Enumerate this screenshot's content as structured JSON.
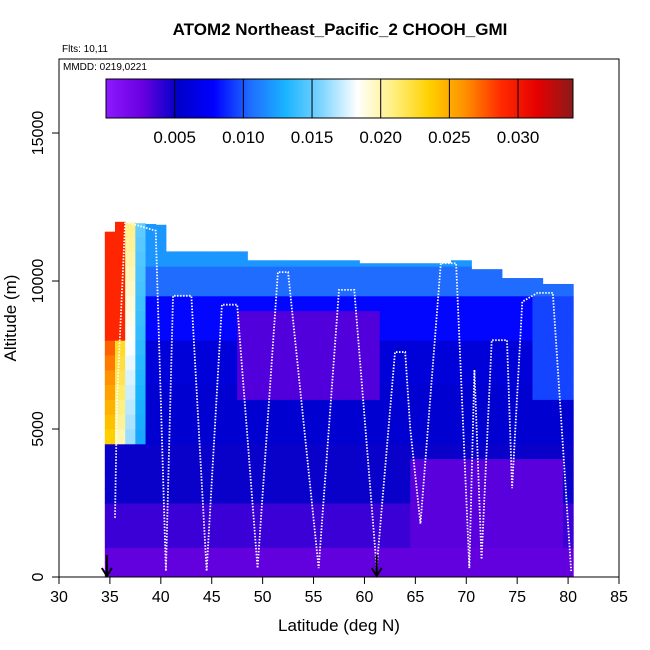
{
  "chart_data": {
    "type": "heatmap",
    "title": "ATOM2 Northeast_Pacific_2 CHOOH_GMI",
    "flights_label": "Flts: 10,11",
    "dates_label": "MMDD: 0219,0221",
    "xlabel": "Latitude (deg N)",
    "ylabel": "Altitude (m)",
    "xlim": [
      30,
      85
    ],
    "ylim": [
      0,
      17500
    ],
    "x_ticks": [
      "30",
      "35",
      "40",
      "45",
      "50",
      "55",
      "60",
      "65",
      "70",
      "75",
      "80",
      "85"
    ],
    "y_ticks": [
      "0",
      "5000",
      "10000",
      "15000"
    ],
    "colorbar": {
      "min": 0.0,
      "max": 0.034,
      "tick_labels": [
        "0.005",
        "0.010",
        "0.015",
        "0.020",
        "0.025",
        "0.030"
      ],
      "tick_values": [
        0.005,
        0.01,
        0.015,
        0.02,
        0.025,
        0.03
      ],
      "colors": [
        "#8c1aff",
        "#6a00e0",
        "#0000c8",
        "#0000ff",
        "#1f6bff",
        "#19b4ff",
        "#7fd4ff",
        "#ffffff",
        "#fff080",
        "#ffd000",
        "#ff9000",
        "#ff2a00",
        "#e60000",
        "#8b1a1a"
      ]
    },
    "arrows_x": [
      34.7,
      61.2
    ],
    "curtain": {
      "lat_range": [
        34.5,
        80.5
      ],
      "top_altitude_profile": [
        [
          34.5,
          11500
        ],
        [
          36,
          12000
        ],
        [
          40,
          11900
        ],
        [
          40.5,
          11000
        ],
        [
          48,
          11000
        ],
        [
          48.5,
          10700
        ],
        [
          59,
          10700
        ],
        [
          59.5,
          10600
        ],
        [
          68,
          10600
        ],
        [
          68.5,
          10700
        ],
        [
          70,
          10700
        ],
        [
          70.5,
          10400
        ],
        [
          73,
          10400
        ],
        [
          73.5,
          10100
        ],
        [
          77,
          10100
        ],
        [
          77.5,
          9900
        ],
        [
          80,
          9900
        ],
        [
          80.5,
          8500
        ]
      ],
      "bottom_altitude": 0
    },
    "flight_track": [
      [
        35.5,
        2000
      ],
      [
        35.7,
        6000
      ],
      [
        36.5,
        12000
      ],
      [
        39.5,
        11700
      ],
      [
        40.5,
        200
      ],
      [
        41.2,
        9500
      ],
      [
        43,
        9500
      ],
      [
        44.5,
        200
      ],
      [
        46,
        9200
      ],
      [
        47.5,
        9200
      ],
      [
        49.5,
        300
      ],
      [
        51.5,
        10300
      ],
      [
        52.5,
        10300
      ],
      [
        55.5,
        300
      ],
      [
        57.5,
        9700
      ],
      [
        59,
        9700
      ],
      [
        61.2,
        300
      ],
      [
        63,
        7600
      ],
      [
        64,
        7600
      ],
      [
        64.5,
        5000
      ],
      [
        65.5,
        1800
      ],
      [
        67.5,
        10600
      ],
      [
        69,
        10600
      ],
      [
        70.3,
        300
      ],
      [
        70.8,
        7000
      ],
      [
        71.5,
        600
      ],
      [
        72.5,
        8000
      ],
      [
        74,
        8000
      ],
      [
        74.5,
        3000
      ],
      [
        75.5,
        9300
      ],
      [
        77,
        9600
      ],
      [
        78.5,
        9600
      ],
      [
        80.3,
        200
      ]
    ]
  }
}
